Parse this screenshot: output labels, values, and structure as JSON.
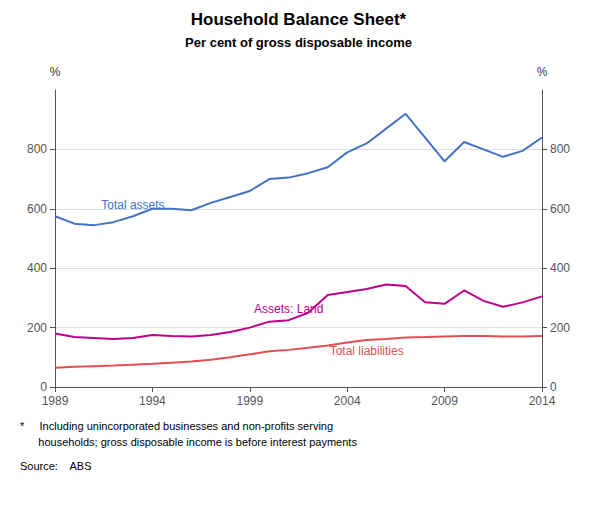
{
  "chart_data": {
    "type": "line",
    "title": "Household Balance Sheet*",
    "subtitle": "Per cent of gross disposable income",
    "ylabel": "%",
    "y2label": "%",
    "footnote": "*     Including unincorporated businesses and non-profits serving\n      households; gross disposable income is before interest payments",
    "source": "Source:    ABS",
    "x": [
      1989,
      1990,
      1991,
      1992,
      1993,
      1994,
      1995,
      1996,
      1997,
      1998,
      1999,
      2000,
      2001,
      2002,
      2003,
      2004,
      2005,
      2006,
      2007,
      2008,
      2009,
      2010,
      2011,
      2012,
      2013,
      2014
    ],
    "series": [
      {
        "name": "Total assets",
        "color": "#4472C4",
        "values": [
          575,
          550,
          545,
          555,
          575,
          600,
          600,
          595,
          620,
          640,
          660,
          700,
          705,
          720,
          740,
          790,
          820,
          870,
          920,
          840,
          760,
          825,
          800,
          775,
          795,
          840
        ]
      },
      {
        "name": "Assets: Land",
        "color": "#C0008A",
        "values": [
          180,
          168,
          165,
          162,
          165,
          175,
          172,
          170,
          175,
          185,
          200,
          220,
          225,
          250,
          310,
          320,
          330,
          345,
          340,
          285,
          280,
          325,
          290,
          270,
          285,
          305
        ]
      },
      {
        "name": "Total liabilities",
        "color": "#E05050",
        "values": [
          65,
          68,
          70,
          72,
          75,
          78,
          82,
          86,
          92,
          100,
          110,
          120,
          125,
          132,
          140,
          150,
          158,
          162,
          167,
          168,
          170,
          172,
          172,
          170,
          170,
          172
        ]
      }
    ],
    "xlim": [
      1989,
      2014
    ],
    "xticks": [
      1989,
      1994,
      1999,
      2004,
      2009,
      2014
    ],
    "ylim": [
      0,
      1000
    ],
    "yticks": [
      0,
      200,
      400,
      600,
      800
    ],
    "y2lim": [
      0,
      1000
    ],
    "y2ticks": [
      0,
      200,
      400,
      600,
      800
    ],
    "grid": true
  }
}
